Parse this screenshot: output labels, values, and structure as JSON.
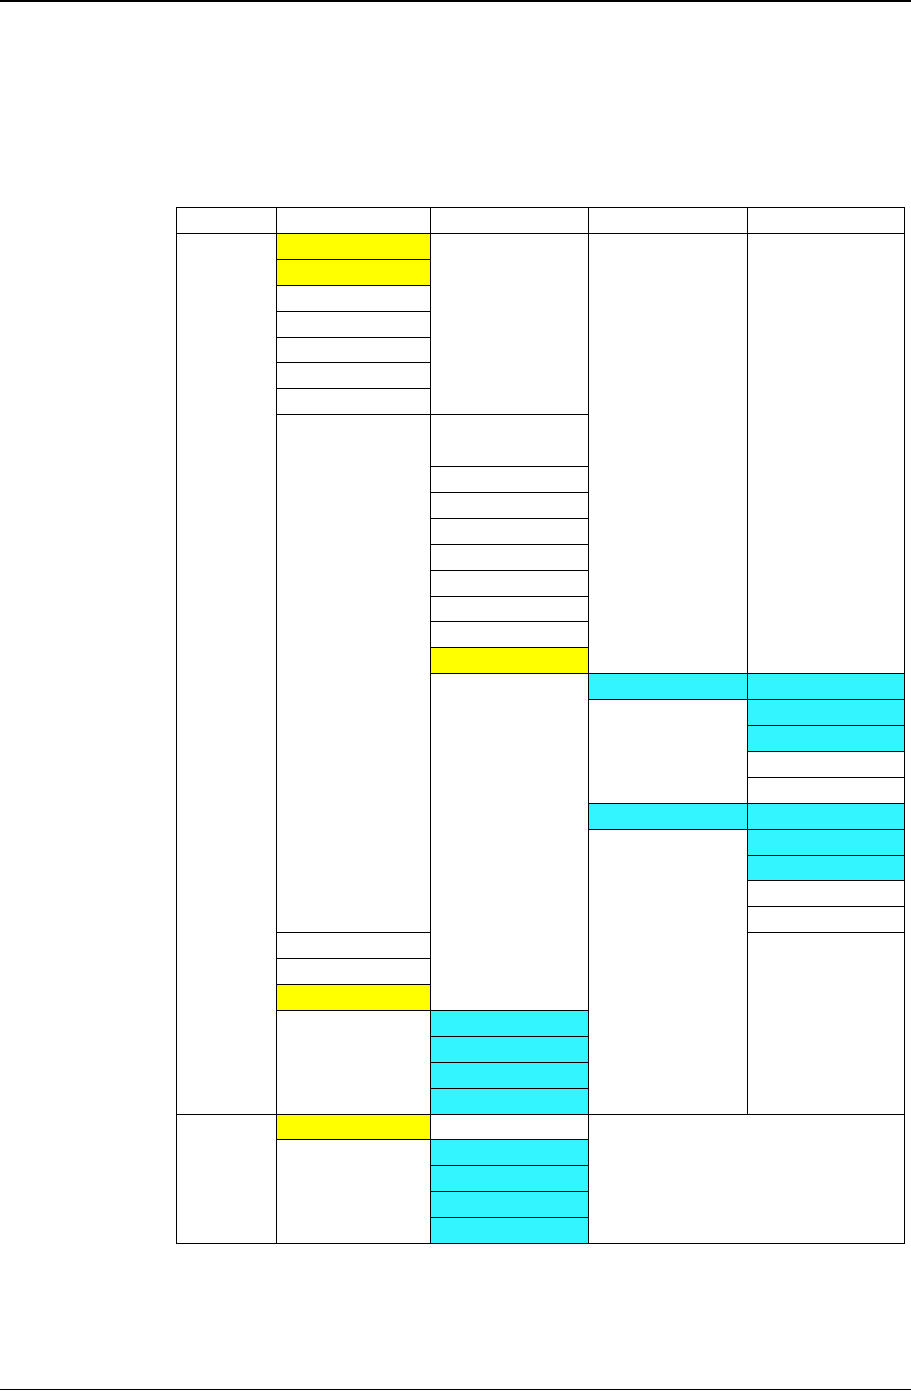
{
  "colors": {
    "highlight_yellow": "#ffff00",
    "highlight_cyan": "#33f5ff",
    "plain": "#ffffff",
    "border": "#000000"
  },
  "table": {
    "header_texts": [
      "",
      "",
      "",
      "",
      ""
    ],
    "note": ""
  }
}
